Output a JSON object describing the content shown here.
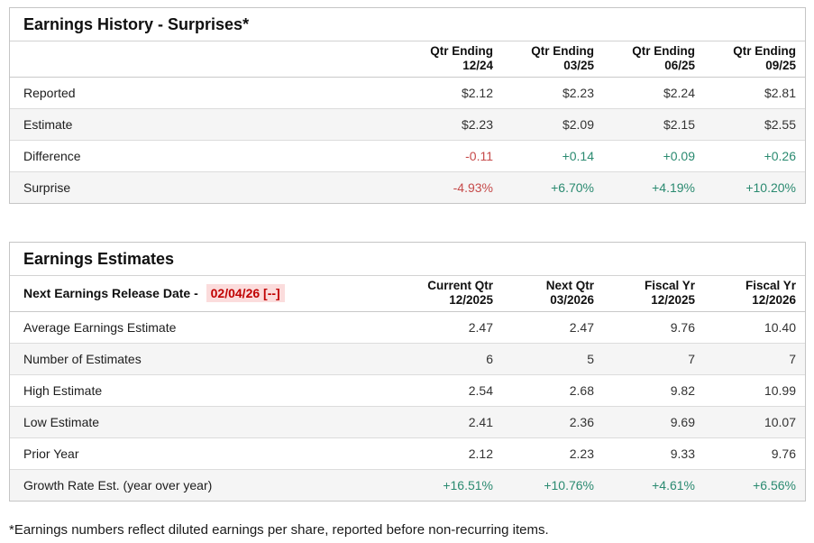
{
  "colors": {
    "positive": "#2a8a70",
    "negative": "#c64a4a",
    "release_date_text": "#c00000",
    "release_date_background": "#fbdcdc",
    "row_stripe": "#f5f5f5"
  },
  "earnings_history": {
    "title": "Earnings History - Surprises*",
    "columns": [
      {
        "line1": "Qtr Ending",
        "line2": "12/24"
      },
      {
        "line1": "Qtr Ending",
        "line2": "03/25"
      },
      {
        "line1": "Qtr Ending",
        "line2": "06/25"
      },
      {
        "line1": "Qtr Ending",
        "line2": "09/25"
      }
    ],
    "rows": [
      {
        "label": "Reported",
        "values": [
          "$2.12",
          "$2.23",
          "$2.24",
          "$2.81"
        ]
      },
      {
        "label": "Estimate",
        "values": [
          "$2.23",
          "$2.09",
          "$2.15",
          "$2.55"
        ]
      },
      {
        "label": "Difference",
        "values": [
          "-0.11",
          "+0.14",
          "+0.09",
          "+0.26"
        ]
      },
      {
        "label": "Surprise",
        "values": [
          "-4.93%",
          "+6.70%",
          "+4.19%",
          "+10.20%"
        ]
      }
    ]
  },
  "earnings_estimates": {
    "title": "Earnings Estimates",
    "release_label": "Next Earnings Release Date -",
    "release_date": "02/04/26 [--]",
    "columns": [
      {
        "line1": "Current Qtr",
        "line2": "12/2025"
      },
      {
        "line1": "Next Qtr",
        "line2": "03/2026"
      },
      {
        "line1": "Fiscal Yr",
        "line2": "12/2025"
      },
      {
        "line1": "Fiscal Yr",
        "line2": "12/2026"
      }
    ],
    "rows": [
      {
        "label": "Average Earnings Estimate",
        "values": [
          "2.47",
          "2.47",
          "9.76",
          "10.40"
        ]
      },
      {
        "label": "Number of Estimates",
        "values": [
          "6",
          "5",
          "7",
          "7"
        ]
      },
      {
        "label": "High Estimate",
        "values": [
          "2.54",
          "2.68",
          "9.82",
          "10.99"
        ]
      },
      {
        "label": "Low Estimate",
        "values": [
          "2.41",
          "2.36",
          "9.69",
          "10.07"
        ]
      },
      {
        "label": "Prior Year",
        "values": [
          "2.12",
          "2.23",
          "9.33",
          "9.76"
        ]
      },
      {
        "label": "Growth Rate Est. (year over year)",
        "values": [
          "+16.51%",
          "+10.76%",
          "+4.61%",
          "+6.56%"
        ]
      }
    ]
  },
  "footnote": "*Earnings numbers reflect diluted earnings per share, reported before non-recurring items."
}
